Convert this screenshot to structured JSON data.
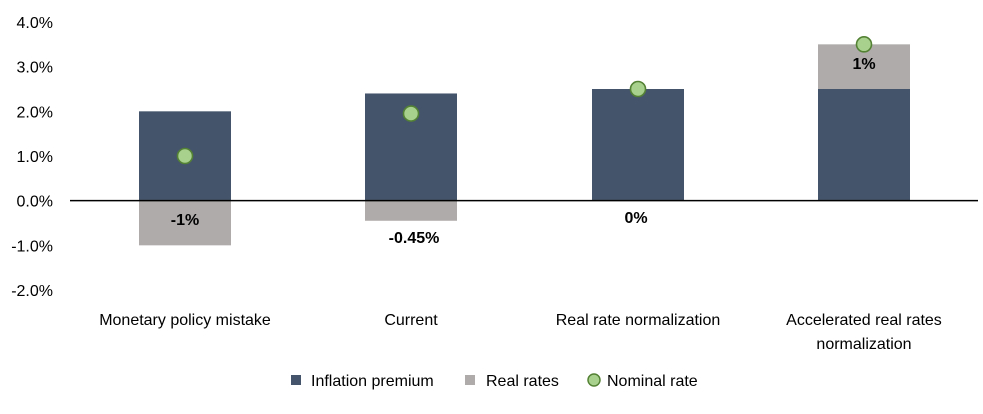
{
  "chart_data": {
    "type": "bar",
    "stacked": true,
    "categories": [
      "Monetary policy mistake",
      "Current",
      "Real rate normalization",
      "Accelerated real rates normalization"
    ],
    "category_lines": [
      [
        "Monetary policy mistake"
      ],
      [
        "Current"
      ],
      [
        "Real rate normalization"
      ],
      [
        "Accelerated real rates",
        "normalization"
      ]
    ],
    "series": [
      {
        "name": "Inflation premium",
        "kind": "bar",
        "color": "#44546A",
        "values": [
          2.0,
          2.4,
          2.5,
          2.5
        ]
      },
      {
        "name": "Real rates",
        "kind": "bar",
        "color": "#AFABAB",
        "values": [
          -1.0,
          -0.45,
          0.0,
          1.0
        ]
      },
      {
        "name": "Nominal rate",
        "kind": "marker",
        "color": "#A9D18E",
        "edge_color": "#548235",
        "values": [
          1.0,
          1.95,
          2.5,
          3.5
        ]
      }
    ],
    "data_labels": [
      "-1%",
      "-0.45%",
      "0%",
      "1%"
    ],
    "yticks": [
      "-2.0%",
      "-1.0%",
      "0.0%",
      "1.0%",
      "2.0%",
      "3.0%",
      "4.0%"
    ],
    "ytick_values": [
      -2,
      -1,
      0,
      1,
      2,
      3,
      4
    ],
    "ylim": [
      -2,
      4
    ],
    "grid": false,
    "legend_position": "bottom"
  }
}
